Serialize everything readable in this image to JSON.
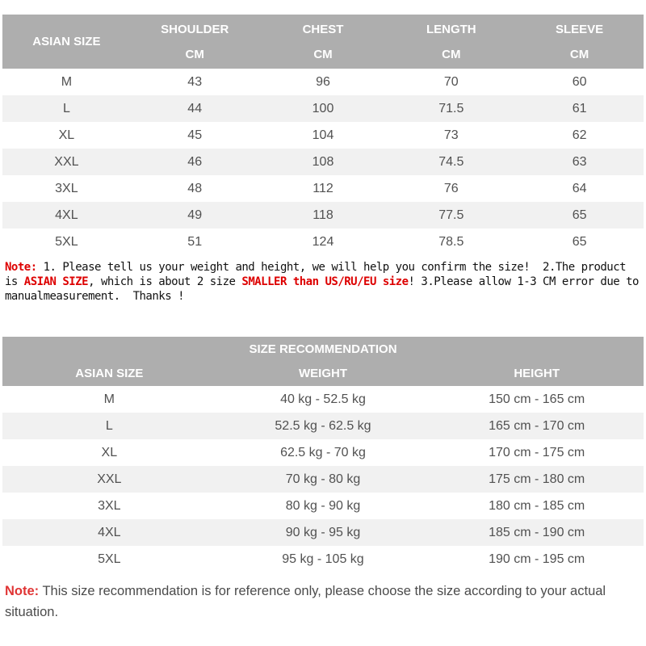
{
  "colors": {
    "header_bg": "#aeaeae",
    "stripe": "#f1f1f1",
    "cell_text": "#515151",
    "note_red": "#dd0000",
    "note2_red": "#e03535"
  },
  "size_table": {
    "columns": [
      {
        "line1": "ASIAN SIZE",
        "line2": ""
      },
      {
        "line1": "SHOULDER",
        "line2": "CM"
      },
      {
        "line1": "CHEST",
        "line2": "CM"
      },
      {
        "line1": "LENGTH",
        "line2": "CM"
      },
      {
        "line1": "SLEEVE",
        "line2": "CM"
      }
    ],
    "rows": [
      [
        "M",
        "43",
        "96",
        "70",
        "60"
      ],
      [
        "L",
        "44",
        "100",
        "71.5",
        "61"
      ],
      [
        "XL",
        "45",
        "104",
        "73",
        "62"
      ],
      [
        "XXL",
        "46",
        "108",
        "74.5",
        "63"
      ],
      [
        "3XL",
        "48",
        "112",
        "76",
        "64"
      ],
      [
        "4XL",
        "49",
        "118",
        "77.5",
        "65"
      ],
      [
        "5XL",
        "51",
        "124",
        "78.5",
        "65"
      ]
    ]
  },
  "note1": {
    "segments": [
      {
        "text": "Note:",
        "red": true
      },
      {
        "text": " 1. Please tell us your weight and height, we will help you confirm the size!  2.The product is ",
        "red": false
      },
      {
        "text": "ASIAN SIZE",
        "red": true
      },
      {
        "text": ", which is about 2 size ",
        "red": false
      },
      {
        "text": "SMALLER than US/RU/EU size",
        "red": true
      },
      {
        "text": "! 3.Please allow 1-3 CM error due to manualmeasurement.  Thanks !",
        "red": false
      }
    ]
  },
  "recommendation_table": {
    "title": "SIZE RECOMMENDATION",
    "columns": [
      "ASIAN SIZE",
      "WEIGHT",
      "HEIGHT"
    ],
    "rows": [
      [
        "M",
        "40 kg - 52.5 kg",
        "150 cm - 165 cm"
      ],
      [
        "L",
        "52.5 kg - 62.5 kg",
        "165 cm - 170 cm"
      ],
      [
        "XL",
        "62.5 kg - 70 kg",
        "170 cm - 175 cm"
      ],
      [
        "XXL",
        "70 kg - 80 kg",
        "175 cm - 180 cm"
      ],
      [
        "3XL",
        "80 kg - 90 kg",
        "180 cm - 185 cm"
      ],
      [
        "4XL",
        "90 kg - 95 kg",
        "185 cm - 190 cm"
      ],
      [
        "5XL",
        "95 kg - 105 kg",
        "190 cm - 195 cm"
      ]
    ]
  },
  "note2": {
    "label": "Note:",
    "text": " This size recommendation is for reference only, please choose the size according to your actual situation."
  }
}
